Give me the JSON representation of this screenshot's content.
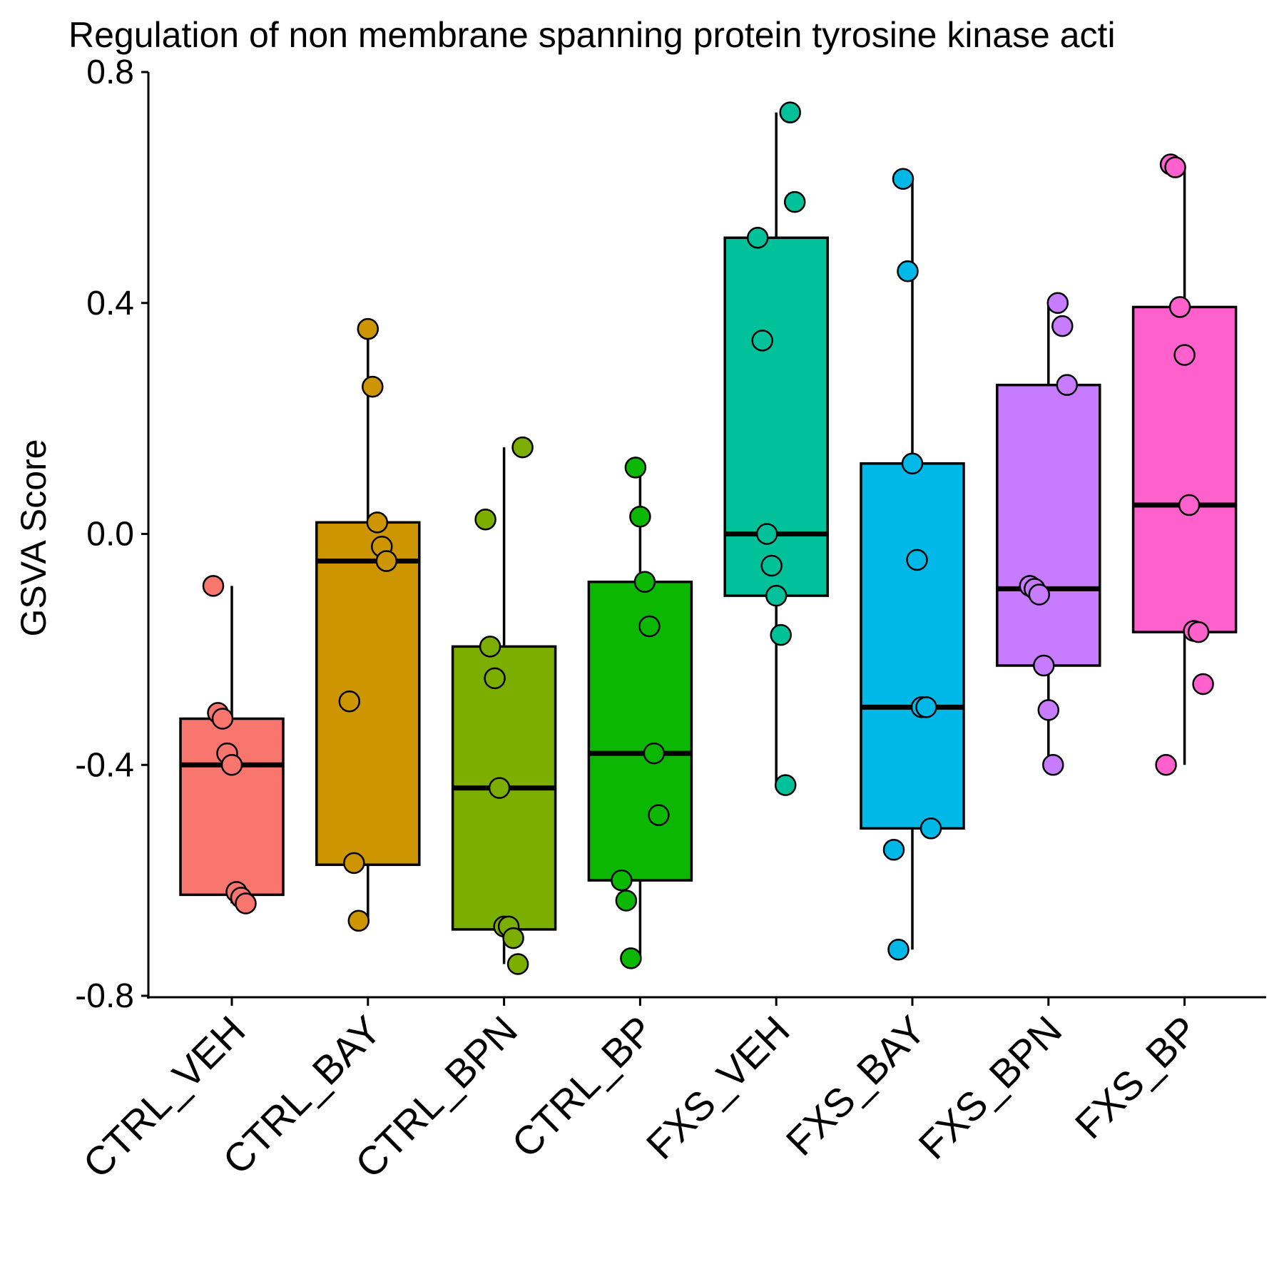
{
  "chart_data": {
    "type": "box",
    "title": "Regulation of non membrane spanning protein tyrosine kinase acti",
    "xlabel": "",
    "ylabel": "GSVA Score",
    "ylim": [
      -0.8,
      0.8
    ],
    "yticks": [
      "-0.8",
      "-0.4",
      "0.0",
      "0.4",
      "0.8"
    ],
    "ytick_values": [
      -0.8,
      -0.4,
      0.0,
      0.4,
      0.8
    ],
    "grid": false,
    "legend": "none",
    "categories": [
      "CTRL_VEH",
      "CTRL_BAY",
      "CTRL_BPN",
      "CTRL_BP",
      "FXS_VEH",
      "FXS_BAY",
      "FXS_BPN",
      "FXS_BP"
    ],
    "groups": [
      {
        "name": "CTRL_VEH",
        "color": "#F8766D",
        "whisker_low": -0.64,
        "q1": -0.625,
        "median": -0.4,
        "q3": -0.32,
        "whisker_high": -0.09,
        "points": [
          -0.09,
          -0.31,
          -0.32,
          -0.38,
          -0.4,
          -0.62,
          -0.63,
          -0.64
        ]
      },
      {
        "name": "CTRL_BAY",
        "color": "#CD9600",
        "whisker_low": -0.67,
        "q1": -0.573,
        "median": -0.047,
        "q3": 0.02,
        "whisker_high": 0.355,
        "points": [
          0.355,
          0.255,
          0.02,
          -0.022,
          -0.047,
          -0.29,
          -0.57,
          -0.67
        ]
      },
      {
        "name": "CTRL_BPN",
        "color": "#7CAE00",
        "whisker_low": -0.745,
        "q1": -0.685,
        "median": -0.44,
        "q3": -0.195,
        "whisker_high": 0.15,
        "points": [
          0.15,
          0.025,
          -0.195,
          -0.25,
          -0.44,
          -0.68,
          -0.68,
          -0.7,
          -0.745
        ]
      },
      {
        "name": "CTRL_BP",
        "color": "#0CB702",
        "whisker_low": -0.735,
        "q1": -0.6,
        "median": -0.38,
        "q3": -0.083,
        "whisker_high": 0.115,
        "points": [
          0.115,
          0.03,
          -0.083,
          -0.16,
          -0.38,
          -0.487,
          -0.6,
          -0.635,
          -0.735
        ]
      },
      {
        "name": "FXS_VEH",
        "color": "#00C19A",
        "whisker_low": -0.435,
        "q1": -0.107,
        "median": 0.0,
        "q3": 0.513,
        "whisker_high": 0.73,
        "points": [
          0.73,
          0.575,
          0.513,
          0.335,
          0.0,
          -0.055,
          -0.107,
          -0.175,
          -0.435
        ]
      },
      {
        "name": "FXS_BAY",
        "color": "#00B8E7",
        "whisker_low": -0.72,
        "q1": -0.51,
        "median": -0.3,
        "q3": 0.122,
        "whisker_high": 0.615,
        "points": [
          0.615,
          0.455,
          0.122,
          -0.045,
          -0.3,
          -0.3,
          -0.51,
          -0.547,
          -0.72
        ]
      },
      {
        "name": "FXS_BPN",
        "color": "#C77CFF",
        "whisker_low": -0.4,
        "q1": -0.228,
        "median": -0.095,
        "q3": 0.258,
        "whisker_high": 0.4,
        "points": [
          0.4,
          0.36,
          0.258,
          -0.09,
          -0.095,
          -0.105,
          -0.228,
          -0.305,
          -0.4
        ]
      },
      {
        "name": "FXS_BP",
        "color": "#FF61CC",
        "whisker_low": -0.4,
        "q1": -0.17,
        "median": 0.05,
        "q3": 0.393,
        "whisker_high": 0.635,
        "points": [
          0.64,
          0.635,
          0.393,
          0.31,
          0.05,
          -0.168,
          -0.17,
          -0.26,
          -0.4
        ]
      }
    ]
  }
}
